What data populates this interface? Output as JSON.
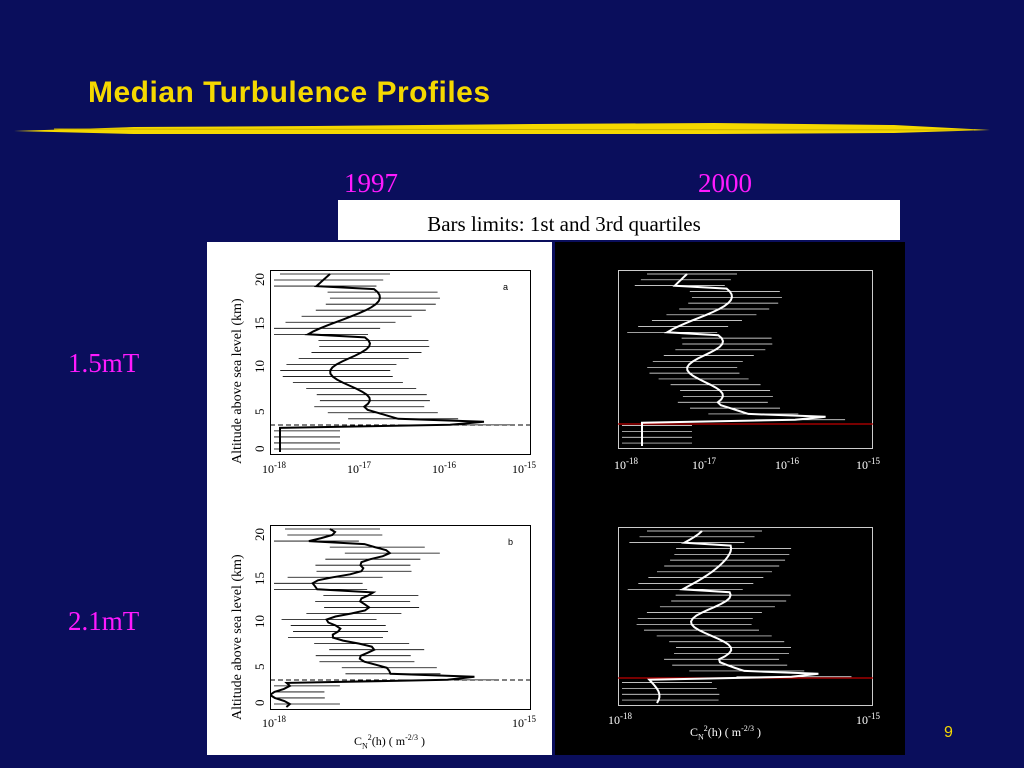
{
  "slide": {
    "title": "Median Turbulence Profiles",
    "note": "Bars limits: 1st and 3rd quartiles",
    "page_number": "9",
    "colors": {
      "background": "#0a0e5c",
      "title": "#f5d800",
      "accent": "#ff1aff"
    }
  },
  "columns": {
    "left_year": "1997",
    "right_year": "2000"
  },
  "rows": {
    "top_label": "1.5mT",
    "bottom_label": "2.1mT"
  },
  "plots": {
    "y_axis_label": "Altitude above sea level (km)",
    "y_ticks": [
      "0",
      "5",
      "10",
      "15",
      "20"
    ],
    "x_tick_base": "10",
    "x_tick_exponents": [
      "-18",
      "-17",
      "-16",
      "-15"
    ],
    "x_axis_label_main": "C",
    "x_axis_label_sub": "N",
    "x_axis_label_rest": "(h) ( m",
    "x_axis_label_exp": "-2/3",
    "x_axis_label_end": " )",
    "x_axis_label_sup2": "2",
    "panel_a_letter": "a",
    "panel_b_letter": "b",
    "small_y_label": "Altitude above sea level (km)"
  }
}
